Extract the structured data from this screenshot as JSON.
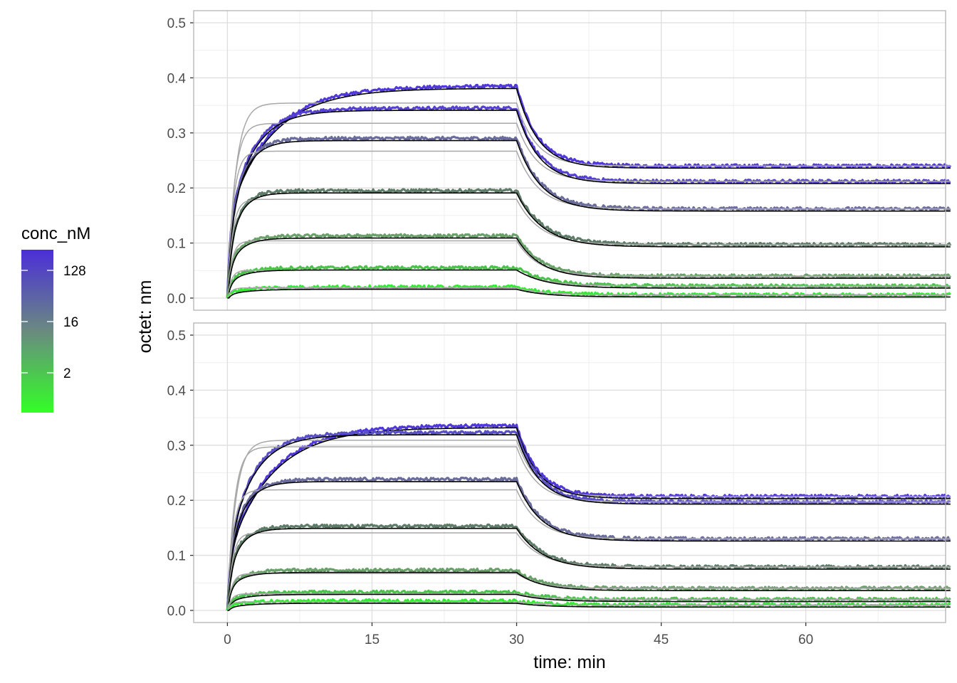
{
  "chart_data": {
    "type": "line",
    "xlabel": "time: min",
    "ylabel": "octet: nm",
    "xlim": [
      -3.5,
      74.5
    ],
    "xticks": [
      0,
      15,
      30,
      45,
      60
    ],
    "ylim": [
      -0.022,
      0.522
    ],
    "yticks": [
      0.0,
      0.1,
      0.2,
      0.3,
      0.4,
      0.5
    ],
    "grid": true,
    "association_end_min": 30,
    "end_min": 75,
    "legend": {
      "title": "conc_nM",
      "type": "colorbar",
      "placement": "left",
      "breaks": [
        "128",
        "16",
        "2"
      ],
      "color_low": "#33ff26",
      "color_high": "#4b2ed9"
    },
    "panels": [
      {
        "series": [
          {
            "color": "#5138d8",
            "assoc": [
              0.385,
              0.235,
              4.5
            ],
            "dissoc": [
              0.24,
              0.14,
              2.2
            ]
          },
          {
            "color": "#5541d2",
            "assoc": [
              0.345,
              0.22,
              2.5
            ],
            "dissoc": [
              0.212,
              0.14,
              2.3
            ]
          },
          {
            "color": "#6a6c9c",
            "assoc": [
              0.29,
              0.195,
              1.5
            ],
            "dissoc": [
              0.162,
              0.13,
              2.5
            ]
          },
          {
            "color": "#5e7c68",
            "assoc": [
              0.195,
              0.12,
              1.2
            ],
            "dissoc": [
              0.097,
              0.1,
              2.7
            ]
          },
          {
            "color": "#6aa06a",
            "assoc": [
              0.113,
              0.055,
              1.4
            ],
            "dissoc": [
              0.04,
              0.075,
              2.5
            ]
          },
          {
            "color": "#4cc24c",
            "assoc": [
              0.055,
              0.025,
              1.6
            ],
            "dissoc": [
              0.022,
              0.03,
              3.0
            ]
          },
          {
            "color": "#35ea35",
            "assoc": [
              0.02,
              0.01,
              2.2
            ],
            "dissoc": [
              0.006,
              0.015,
              3.0
            ]
          }
        ]
      },
      {
        "series": [
          {
            "color": "#5138d8",
            "assoc": [
              0.336,
              0.235,
              4.5
            ],
            "dissoc": [
              0.207,
              0.14,
              2.2
            ]
          },
          {
            "color": "#5a50c6",
            "assoc": [
              0.323,
              0.22,
              2.5
            ],
            "dissoc": [
              0.197,
              0.135,
              2.3
            ]
          },
          {
            "color": "#6a6c9c",
            "assoc": [
              0.238,
              0.16,
              1.5
            ],
            "dissoc": [
              0.13,
              0.118,
              2.5
            ]
          },
          {
            "color": "#5e7c68",
            "assoc": [
              0.153,
              0.09,
              1.3
            ],
            "dissoc": [
              0.079,
              0.09,
              2.7
            ]
          },
          {
            "color": "#6aa06a",
            "assoc": [
              0.073,
              0.03,
              1.5
            ],
            "dissoc": [
              0.04,
              0.05,
              2.5
            ]
          },
          {
            "color": "#4cc24c",
            "assoc": [
              0.033,
              0.015,
              1.8
            ],
            "dissoc": [
              0.02,
              0.02,
              3.0
            ]
          },
          {
            "color": "#35ea35",
            "assoc": [
              0.017,
              0.008,
              2.2
            ],
            "dissoc": [
              0.01,
              0.012,
              3.0
            ]
          }
        ]
      }
    ]
  }
}
